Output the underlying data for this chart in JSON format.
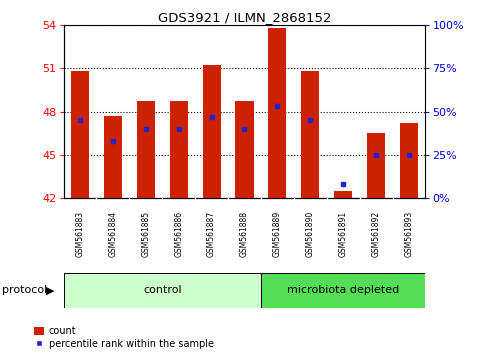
{
  "title": "GDS3921 / ILMN_2868152",
  "samples": [
    "GSM561883",
    "GSM561884",
    "GSM561885",
    "GSM561886",
    "GSM561887",
    "GSM561888",
    "GSM561889",
    "GSM561890",
    "GSM561891",
    "GSM561892",
    "GSM561893"
  ],
  "red_values": [
    50.8,
    47.7,
    48.7,
    48.7,
    51.2,
    48.7,
    53.8,
    50.8,
    42.5,
    46.5,
    47.2
  ],
  "blue_percentiles": [
    45,
    33,
    40,
    40,
    47,
    40,
    53,
    45,
    8,
    25,
    25
  ],
  "y_min": 42,
  "y_max": 54,
  "y_ticks": [
    42,
    45,
    48,
    51,
    54
  ],
  "y2_ticks": [
    0,
    25,
    50,
    75,
    100
  ],
  "y2_labels": [
    "0%",
    "25%",
    "50%",
    "75%",
    "100%"
  ],
  "control_count": 6,
  "bar_color": "#cc2200",
  "dot_color": "#2222cc",
  "control_bg": "#ccffcc",
  "microbiota_bg": "#55dd55",
  "sample_box_bg": "#cccccc",
  "protocol_label": "protocol",
  "control_label": "control",
  "microbiota_label": "microbiota depleted",
  "legend_count": "count",
  "legend_percentile": "percentile rank within the sample",
  "background_color": "#ffffff",
  "bar_width": 0.55
}
